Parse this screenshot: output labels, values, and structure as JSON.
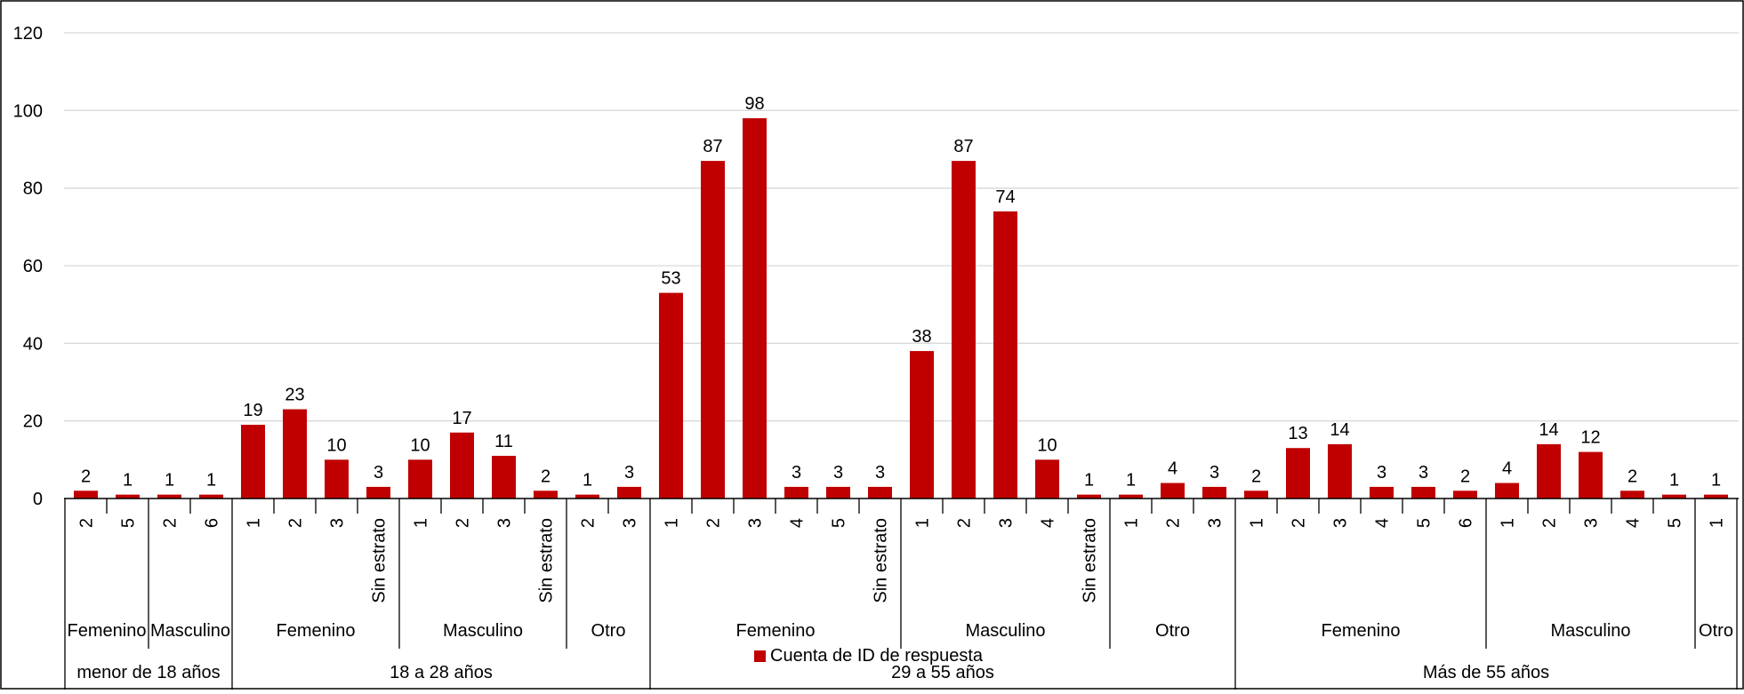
{
  "chart_data": {
    "type": "bar",
    "ylim": [
      0,
      120
    ],
    "yticks": [
      0,
      20,
      40,
      60,
      80,
      100,
      120
    ],
    "grid": true,
    "bar_color": "#c00000",
    "legend": {
      "label": "Cuenta de ID de respuesta",
      "placement": "bottom"
    },
    "age_groups": [
      {
        "label": "menor de 18 años",
        "genders": [
          {
            "label": "Femenino",
            "strata": [
              {
                "label": "2",
                "value": 2
              },
              {
                "label": "5",
                "value": 1
              }
            ]
          },
          {
            "label": "Masculino",
            "strata": [
              {
                "label": "2",
                "value": 1
              },
              {
                "label": "6",
                "value": 1
              }
            ]
          }
        ]
      },
      {
        "label": "18 a 28 años",
        "genders": [
          {
            "label": "Femenino",
            "strata": [
              {
                "label": "1",
                "value": 19
              },
              {
                "label": "2",
                "value": 23
              },
              {
                "label": "3",
                "value": 10
              },
              {
                "label": "Sin estrato",
                "value": 3
              }
            ]
          },
          {
            "label": "Masculino",
            "strata": [
              {
                "label": "1",
                "value": 10
              },
              {
                "label": "2",
                "value": 17
              },
              {
                "label": "3",
                "value": 11
              },
              {
                "label": "Sin estrato",
                "value": 2
              }
            ]
          },
          {
            "label": "Otro",
            "strata": [
              {
                "label": "2",
                "value": 1
              },
              {
                "label": "3",
                "value": 3
              }
            ]
          }
        ]
      },
      {
        "label": "29 a 55 años",
        "genders": [
          {
            "label": "Femenino",
            "strata": [
              {
                "label": "1",
                "value": 53
              },
              {
                "label": "2",
                "value": 87
              },
              {
                "label": "3",
                "value": 98
              },
              {
                "label": "4",
                "value": 3
              },
              {
                "label": "5",
                "value": 3
              },
              {
                "label": "Sin estrato",
                "value": 3
              }
            ]
          },
          {
            "label": "Masculino",
            "strata": [
              {
                "label": "1",
                "value": 38
              },
              {
                "label": "2",
                "value": 87
              },
              {
                "label": "3",
                "value": 74
              },
              {
                "label": "4",
                "value": 10
              },
              {
                "label": "Sin estrato",
                "value": 1
              }
            ]
          },
          {
            "label": "Otro",
            "strata": [
              {
                "label": "1",
                "value": 1
              },
              {
                "label": "2",
                "value": 4
              },
              {
                "label": "3",
                "value": 3
              }
            ]
          }
        ]
      },
      {
        "label": "Más de 55 años",
        "genders": [
          {
            "label": "Femenino",
            "strata": [
              {
                "label": "1",
                "value": 2
              },
              {
                "label": "2",
                "value": 13
              },
              {
                "label": "3",
                "value": 14
              },
              {
                "label": "4",
                "value": 3
              },
              {
                "label": "5",
                "value": 3
              },
              {
                "label": "6",
                "value": 2
              }
            ]
          },
          {
            "label": "Masculino",
            "strata": [
              {
                "label": "1",
                "value": 4
              },
              {
                "label": "2",
                "value": 14
              },
              {
                "label": "3",
                "value": 12
              },
              {
                "label": "4",
                "value": 2
              },
              {
                "label": "5",
                "value": 1
              }
            ]
          },
          {
            "label": "Otro",
            "strata": [
              {
                "label": "1",
                "value": 1
              }
            ]
          }
        ]
      }
    ]
  }
}
